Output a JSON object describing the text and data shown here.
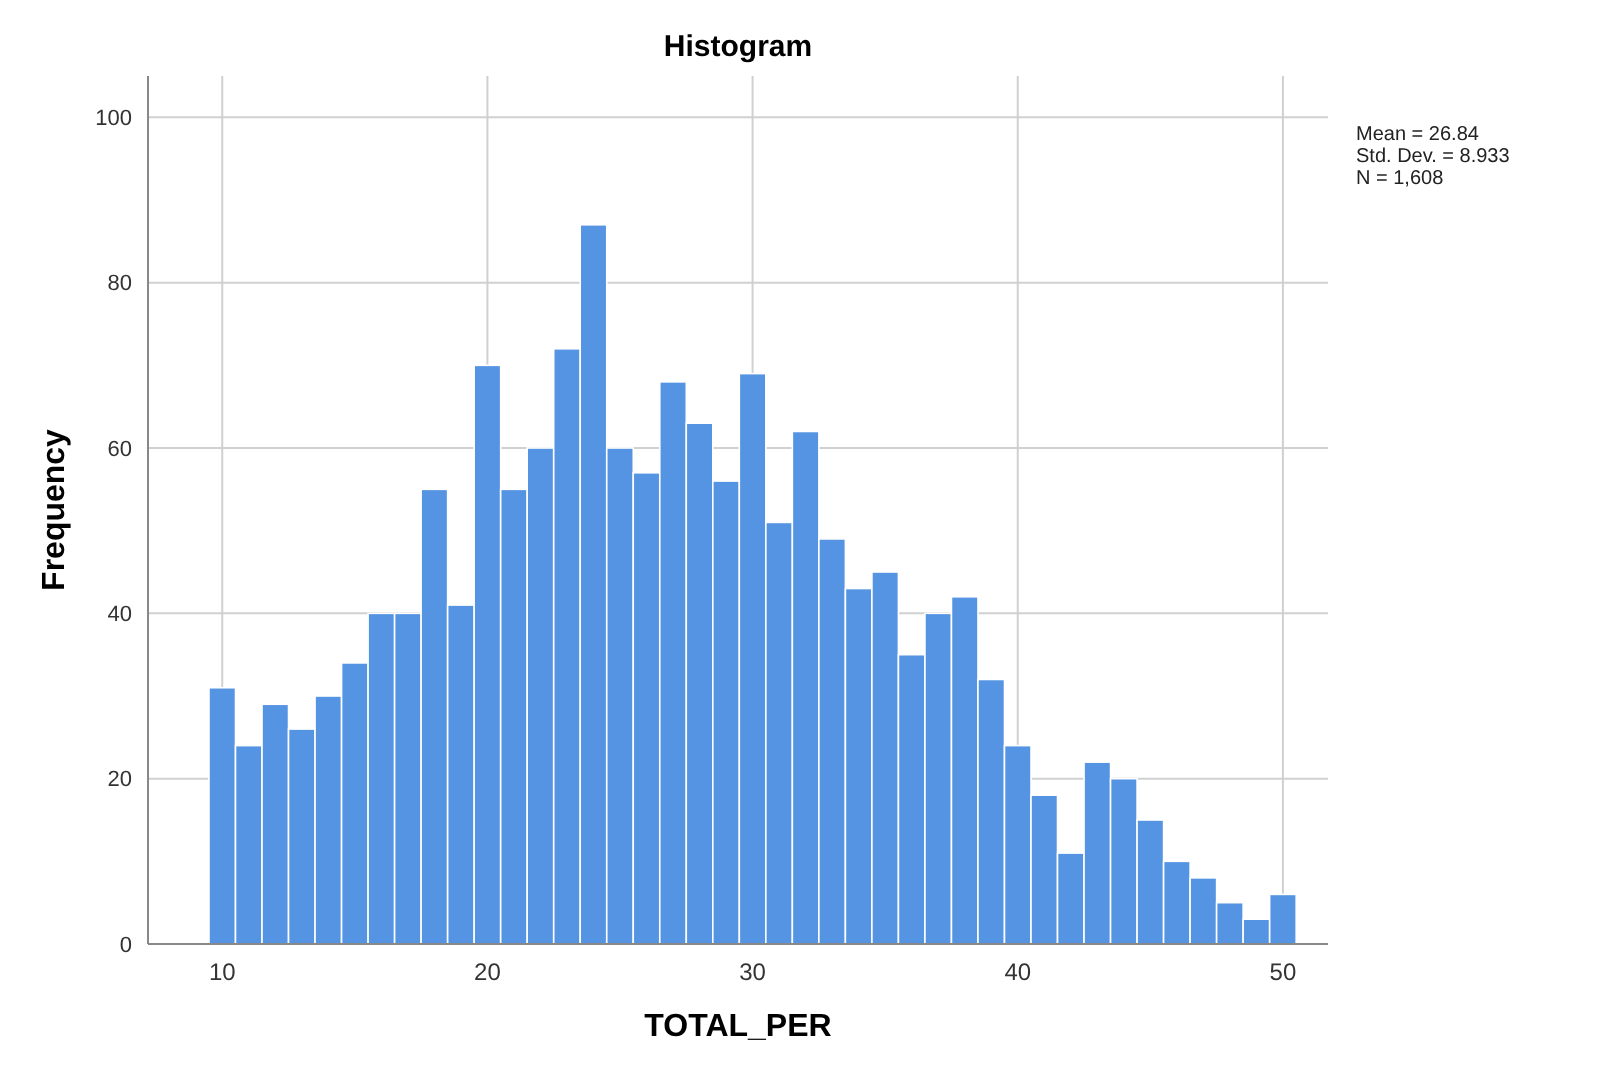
{
  "chart_data": {
    "type": "histogram",
    "title": "Histogram",
    "xlabel": "TOTAL_PER",
    "ylabel": "Frequency",
    "bins": [
      9.5,
      10.5,
      11.5,
      12.5,
      13.5,
      14.5,
      15.5,
      16.5,
      17.5,
      18.5,
      19.5,
      20.5,
      21.5,
      22.5,
      23.5,
      24.5,
      25.5,
      26.5,
      27.5,
      28.5,
      29.5,
      30.5,
      31.5,
      32.5,
      33.5,
      34.5,
      35.5,
      36.5,
      37.5,
      38.5,
      39.5,
      40.5,
      41.5,
      42.5,
      43.5,
      44.5,
      45.5,
      46.5,
      47.5,
      48.5,
      49.5,
      50.5
    ],
    "values": [
      31,
      24,
      29,
      26,
      30,
      34,
      40,
      40,
      55,
      41,
      70,
      55,
      60,
      72,
      87,
      60,
      57,
      68,
      63,
      56,
      69,
      51,
      62,
      49,
      43,
      45,
      35,
      40,
      42,
      32,
      24,
      18,
      11,
      22,
      20,
      15,
      10,
      8,
      5,
      3,
      6
    ],
    "color": "#5594e2",
    "xlim": [
      7.2,
      51.7
    ],
    "ylim": [
      0,
      105
    ],
    "xticks": [
      10,
      20,
      30,
      40,
      50
    ],
    "yticks": [
      0,
      20,
      40,
      60,
      80,
      100
    ],
    "grid": true,
    "annotations": [
      "Mean = 26.84",
      "Std. Dev. = 8.933",
      "N = 1,608"
    ]
  }
}
